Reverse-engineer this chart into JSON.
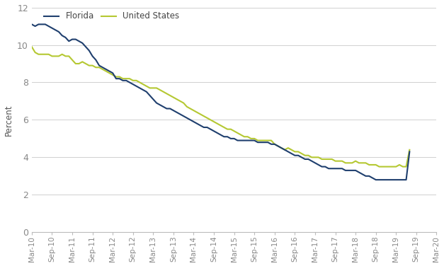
{
  "ylabel": "Percent",
  "florida_color": "#1f3f6e",
  "us_color": "#b5c832",
  "florida_label": "Florida",
  "us_label": "United States",
  "ylim": [
    0,
    12
  ],
  "yticks": [
    0,
    2,
    4,
    6,
    8,
    10,
    12
  ],
  "florida_data": [
    11.1,
    11.0,
    11.1,
    11.1,
    11.1,
    11.0,
    10.9,
    10.8,
    10.7,
    10.5,
    10.4,
    10.2,
    10.3,
    10.3,
    10.2,
    10.1,
    9.9,
    9.7,
    9.4,
    9.2,
    8.9,
    8.8,
    8.7,
    8.6,
    8.5,
    8.2,
    8.2,
    8.1,
    8.1,
    8.0,
    7.9,
    7.8,
    7.7,
    7.6,
    7.5,
    7.3,
    7.1,
    6.9,
    6.8,
    6.7,
    6.6,
    6.6,
    6.5,
    6.4,
    6.3,
    6.2,
    6.1,
    6.0,
    5.9,
    5.8,
    5.7,
    5.6,
    5.6,
    5.5,
    5.4,
    5.3,
    5.2,
    5.1,
    5.1,
    5.0,
    5.0,
    4.9,
    4.9,
    4.9,
    4.9,
    4.9,
    4.9,
    4.8,
    4.8,
    4.8,
    4.8,
    4.7,
    4.7,
    4.6,
    4.5,
    4.4,
    4.3,
    4.2,
    4.1,
    4.1,
    4.0,
    3.9,
    3.9,
    3.8,
    3.7,
    3.6,
    3.5,
    3.5,
    3.4,
    3.4,
    3.4,
    3.4,
    3.4,
    3.3,
    3.3,
    3.3,
    3.3,
    3.2,
    3.1,
    3.0,
    3.0,
    2.9,
    2.8,
    2.8,
    2.8,
    2.8,
    2.8,
    2.8,
    2.8,
    2.8,
    2.8,
    2.8,
    4.3
  ],
  "us_data": [
    9.9,
    9.6,
    9.5,
    9.5,
    9.5,
    9.5,
    9.4,
    9.4,
    9.4,
    9.5,
    9.4,
    9.4,
    9.2,
    9.0,
    9.0,
    9.1,
    9.0,
    8.9,
    8.9,
    8.8,
    8.8,
    8.7,
    8.6,
    8.5,
    8.4,
    8.3,
    8.3,
    8.2,
    8.2,
    8.2,
    8.1,
    8.1,
    8.0,
    7.9,
    7.8,
    7.7,
    7.7,
    7.7,
    7.6,
    7.5,
    7.4,
    7.3,
    7.2,
    7.1,
    7.0,
    6.9,
    6.7,
    6.6,
    6.5,
    6.4,
    6.3,
    6.2,
    6.1,
    6.0,
    5.9,
    5.8,
    5.7,
    5.6,
    5.5,
    5.5,
    5.4,
    5.3,
    5.2,
    5.1,
    5.1,
    5.0,
    5.0,
    4.9,
    4.9,
    4.9,
    4.9,
    4.9,
    4.7,
    4.6,
    4.5,
    4.4,
    4.5,
    4.4,
    4.3,
    4.3,
    4.2,
    4.1,
    4.1,
    4.0,
    4.0,
    4.0,
    3.9,
    3.9,
    3.9,
    3.9,
    3.8,
    3.8,
    3.8,
    3.7,
    3.7,
    3.7,
    3.8,
    3.7,
    3.7,
    3.7,
    3.6,
    3.6,
    3.6,
    3.5,
    3.5,
    3.5,
    3.5,
    3.5,
    3.5,
    3.6,
    3.5,
    3.5,
    4.4
  ],
  "x_tick_labels": [
    "Mar-10",
    "Sep-10",
    "Mar-11",
    "Sep-11",
    "Mar-12",
    "Sep-12",
    "Mar-13",
    "Sep-13",
    "Mar-14",
    "Sep-14",
    "Mar-15",
    "Sep-15",
    "Mar-16",
    "Sep-16",
    "Mar-17",
    "Sep-17",
    "Mar-18",
    "Sep-18",
    "Mar-19",
    "Sep-19",
    "Mar-20"
  ],
  "x_tick_positions": [
    0,
    6,
    12,
    18,
    24,
    30,
    36,
    42,
    48,
    54,
    60,
    66,
    72,
    78,
    84,
    90,
    96,
    102,
    108,
    114,
    120
  ],
  "line_width": 1.5,
  "grid_color": "#d0d0d0",
  "bg_color": "#ffffff",
  "tick_color": "#888888",
  "label_color": "#555555"
}
